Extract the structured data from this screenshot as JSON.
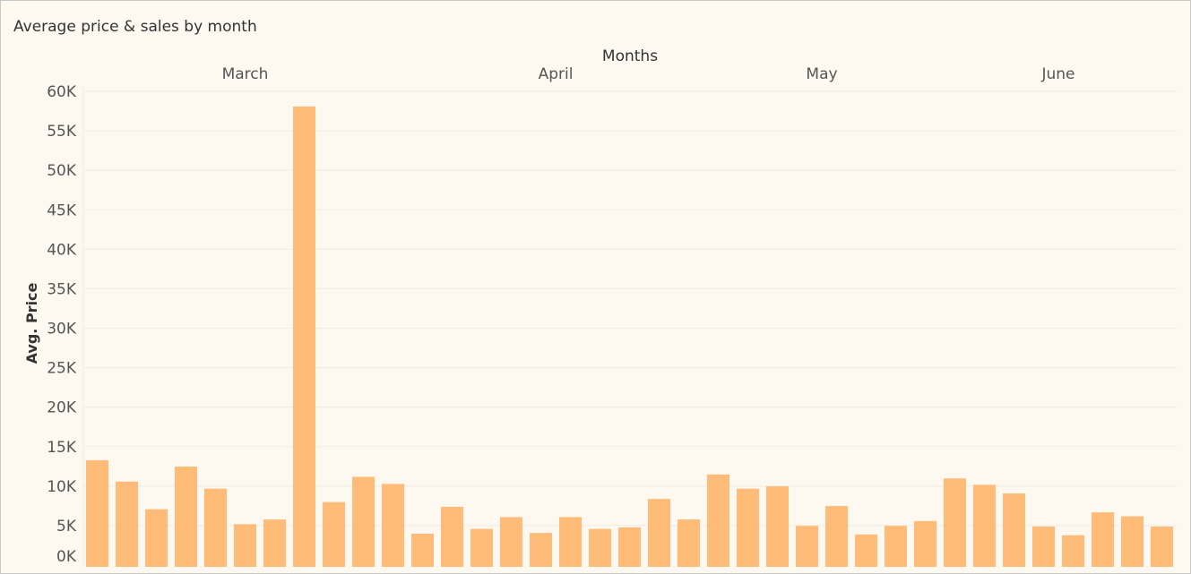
{
  "title": "Average price & sales by month",
  "colors": {
    "bar": "#ffbc79",
    "grid": "#f0ebe3",
    "axis_text": "#555555",
    "label_text": "#333333",
    "background": "#fdf8f0"
  },
  "chart_data": {
    "type": "bar",
    "title": "Average price & sales by month",
    "xlabel": "Months",
    "ylabel": "Avg. Price",
    "ylim": [
      0,
      60000
    ],
    "grid": true,
    "legend": "none",
    "groups": [
      {
        "name": "March",
        "values": [
          13500,
          10800,
          7300,
          12700,
          9900,
          5400,
          6000,
          58300,
          8200,
          11400,
          10500
        ]
      },
      {
        "name": "April",
        "values": [
          4200,
          7600,
          4800,
          6300,
          4300,
          6300,
          4800,
          5000,
          8600,
          6000
        ]
      },
      {
        "name": "May",
        "values": [
          11700,
          9900,
          10200,
          5200,
          7700,
          4100,
          5200,
          5800
        ]
      },
      {
        "name": "June",
        "values": [
          11200,
          10400,
          9300,
          5100,
          4000,
          6900,
          6400,
          5100
        ]
      }
    ],
    "yticks": [
      {
        "value": 0,
        "label": "0K"
      },
      {
        "value": 5000,
        "label": "5K"
      },
      {
        "value": 10000,
        "label": "10K"
      },
      {
        "value": 15000,
        "label": "15K"
      },
      {
        "value": 20000,
        "label": "20K"
      },
      {
        "value": 25000,
        "label": "25K"
      },
      {
        "value": 30000,
        "label": "30K"
      },
      {
        "value": 35000,
        "label": "35K"
      },
      {
        "value": 40000,
        "label": "40K"
      },
      {
        "value": 45000,
        "label": "45K"
      },
      {
        "value": 50000,
        "label": "50K"
      },
      {
        "value": 55000,
        "label": "55K"
      },
      {
        "value": 60000,
        "label": "60K"
      }
    ]
  }
}
